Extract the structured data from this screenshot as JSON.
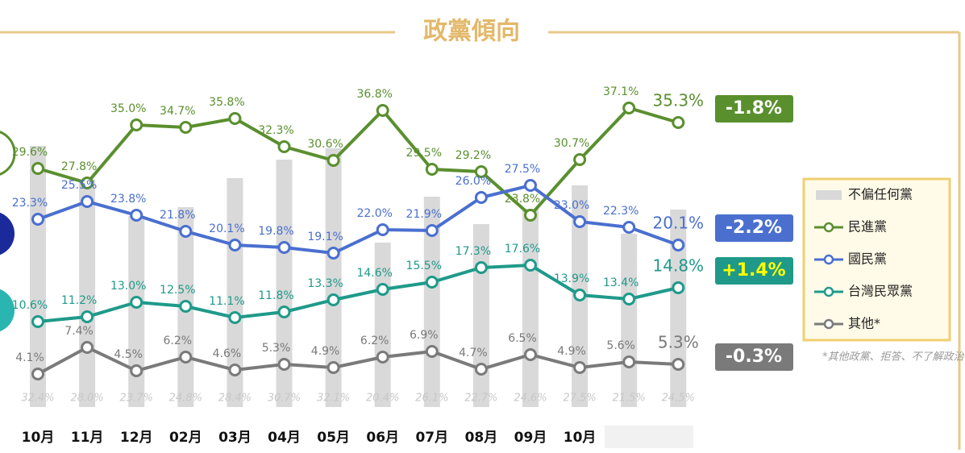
{
  "chart_data": {
    "type": "line",
    "title": "政黨傾向",
    "categories": [
      "10月",
      "11月",
      "12月",
      "02月",
      "03月",
      "04月",
      "05月",
      "06月",
      "07月",
      "08月",
      "09月",
      "10月",
      null,
      null
    ],
    "ylim": [
      0,
      45
    ],
    "bars": {
      "name": "不偏任何黨",
      "color": "#d9d9d9",
      "values": [
        32.4,
        28.0,
        23.7,
        24.8,
        28.4,
        30.7,
        32.1,
        20.4,
        26.1,
        22.7,
        24.6,
        27.5,
        21.5,
        24.5
      ],
      "value_labels": [
        "32.4%",
        "28.0%",
        "23.7%",
        "24.8%",
        "28.4%",
        "30.7%",
        "32.1%",
        "20.4%",
        "26.1%",
        "22.7%",
        "24.6%",
        "27.5%",
        "21.5%",
        "24.5%"
      ]
    },
    "series": [
      {
        "name": "民進黨",
        "color": "#5a8f2e",
        "change": "-1.8%",
        "values": [
          29.6,
          27.8,
          35.0,
          34.7,
          35.8,
          32.3,
          30.6,
          36.8,
          29.5,
          29.2,
          23.8,
          30.7,
          37.1,
          35.3
        ],
        "value_labels": [
          "29.6%",
          "27.8%",
          "35.0%",
          "34.7%",
          "35.8%",
          "32.3%",
          "30.6%",
          "36.8%",
          "29.5%",
          "29.2%",
          "23.8%",
          "30.7%",
          "37.1%",
          "35.3%"
        ]
      },
      {
        "name": "國民黨",
        "color": "#4a6fcf",
        "change": "-2.2%",
        "values": [
          23.3,
          25.5,
          23.8,
          21.8,
          20.1,
          19.8,
          19.1,
          22.0,
          21.9,
          26.0,
          27.5,
          23.0,
          22.3,
          20.1
        ],
        "value_labels": [
          "23.3%",
          "25.5%",
          "23.8%",
          "21.8%",
          "20.1%",
          "19.8%",
          "19.1%",
          "22.0%",
          "21.9%",
          "26.0%",
          "27.5%",
          "23.0%",
          "22.3%",
          "20.1%"
        ]
      },
      {
        "name": "台灣民眾黨",
        "color": "#1f9a8a",
        "change": "+1.4%",
        "values": [
          10.6,
          11.2,
          13.0,
          12.5,
          11.1,
          11.8,
          13.3,
          14.6,
          15.5,
          17.3,
          17.6,
          13.9,
          13.4,
          14.8
        ],
        "value_labels": [
          "10.6%",
          "11.2%",
          "13.0%",
          "12.5%",
          "11.1%",
          "11.8%",
          "13.3%",
          "14.6%",
          "15.5%",
          "17.3%",
          "17.6%",
          "13.9%",
          "13.4%",
          "14.8%"
        ]
      },
      {
        "name": "其他*",
        "color": "#7a7a7a",
        "change": "-0.3%",
        "values": [
          4.1,
          7.4,
          4.5,
          6.2,
          4.6,
          5.3,
          4.9,
          6.2,
          6.9,
          4.7,
          6.5,
          4.9,
          5.6,
          5.3
        ],
        "value_labels": [
          "4.1%",
          "7.4%",
          "4.5%",
          "6.2%",
          "4.6%",
          "5.3%",
          "4.9%",
          "6.2%",
          "6.9%",
          "4.7%",
          "6.5%",
          "4.9%",
          "5.6%",
          "5.3%"
        ]
      }
    ],
    "footnote": "*其他政黨、拒答、不了解政治"
  }
}
